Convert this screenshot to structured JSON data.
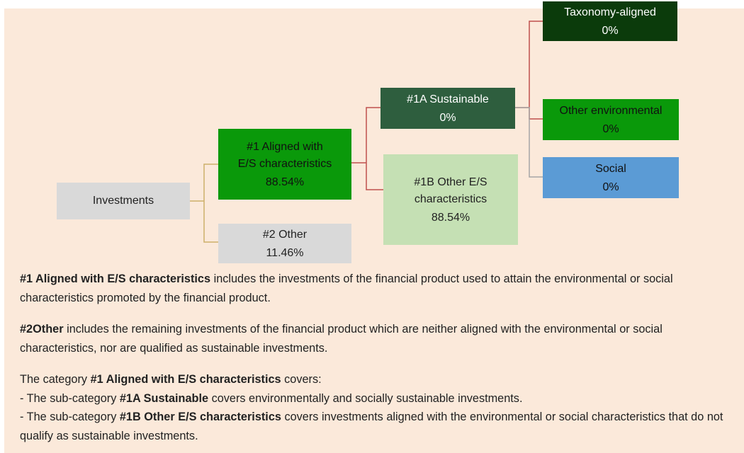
{
  "nodes": [
    {
      "label": [
        "Investments"
      ]
    },
    {
      "label": [
        "#1 Aligned with",
        "E/S characteristics"
      ],
      "value": "88.54%"
    },
    {
      "label": [
        "#2 Other"
      ],
      "value": "11.46%"
    },
    {
      "label": [
        "#1A Sustainable"
      ],
      "value": "0%"
    },
    {
      "label": [
        "#1B Other E/S",
        "characteristics"
      ],
      "value": "88.54%"
    },
    {
      "label": [
        "Taxonomy-aligned"
      ],
      "value": "0%"
    },
    {
      "label": [
        "Other environmental"
      ],
      "value": "0%"
    },
    {
      "label": [
        "Social"
      ],
      "value": "0%"
    }
  ],
  "paragraphs": [
    [
      {
        "text": "#1 Aligned with E/S characteristics",
        "bold": true
      },
      {
        "text": " includes the investments of the financial product used to attain the environmental or social characteristics promoted by the financial product."
      }
    ],
    [
      {
        "text": "#2Other",
        "bold": true
      },
      {
        "text": " includes the remaining investments of the financial product which are neither aligned with the environmental or social characteristics, nor are qualified as sustainable investments."
      }
    ]
  ],
  "category": {
    "intro": [
      {
        "text": "The category "
      },
      {
        "text": "#1 Aligned with E/S characteristics",
        "bold": true
      },
      {
        "text": " covers:"
      }
    ],
    "items": [
      [
        {
          "text": "- The sub-category "
        },
        {
          "text": "#1A Sustainable",
          "bold": true
        },
        {
          "text": " covers environmentally and socially sustainable investments."
        }
      ],
      [
        {
          "text": "- The sub-category "
        },
        {
          "text": "#1B Other E/S characteristics",
          "bold": true
        },
        {
          "text": " covers investments aligned with the environmental or social characteristics that do not qualify as sustainable investments."
        }
      ]
    ]
  }
}
